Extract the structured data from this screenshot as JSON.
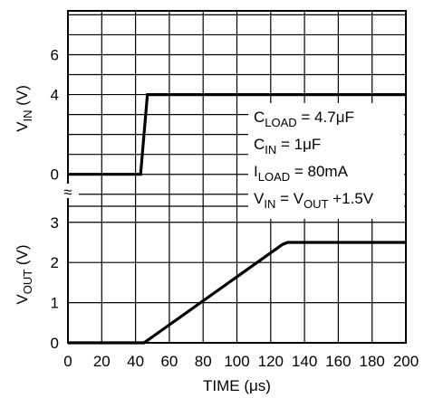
{
  "chart_data": {
    "type": "line",
    "xlabel": {
      "main": "TIME (",
      "mu": "μ",
      "unit": "s)"
    },
    "x_ticks": [
      0,
      20,
      40,
      60,
      80,
      100,
      120,
      140,
      160,
      180,
      200
    ],
    "xlim": [
      0,
      200
    ],
    "panels": [
      {
        "id": "vin",
        "ylabel": {
          "main": "V",
          "sub": "IN",
          "unit": " (V)"
        },
        "y_ticks": [
          0,
          4,
          6
        ],
        "ylim": [
          -1.6,
          8.2
        ],
        "series": [
          {
            "x": [
              0,
              43,
              47,
              200
            ],
            "y": [
              0,
              0,
              4,
              4
            ]
          }
        ]
      },
      {
        "id": "vout",
        "ylabel": {
          "main": "V",
          "sub": "OUT",
          "unit": " (V)"
        },
        "y_ticks": [
          0,
          1,
          2,
          3
        ],
        "ylim": [
          0,
          3.4
        ],
        "series": [
          {
            "x": [
              0,
              45,
              127,
              130,
              200
            ],
            "y": [
              0,
              0,
              2.45,
              2.5,
              2.5
            ]
          }
        ]
      }
    ],
    "annotations": [
      {
        "pre": "C",
        "sub": "LOAD",
        "post": " = 4.7μF"
      },
      {
        "pre": "C",
        "sub": "IN",
        "post": " = 1μF"
      },
      {
        "pre": "I",
        "sub": "LOAD",
        "post": " = 80mA"
      },
      {
        "pre": "V",
        "sub": "IN",
        "post": " = V",
        "sub2": "OUT",
        "post2": " +1.5V"
      }
    ],
    "break_symbol": "≈",
    "grid": true,
    "colors": {
      "line": "#000000",
      "grid": "#000000",
      "background": "#ffffff"
    }
  }
}
